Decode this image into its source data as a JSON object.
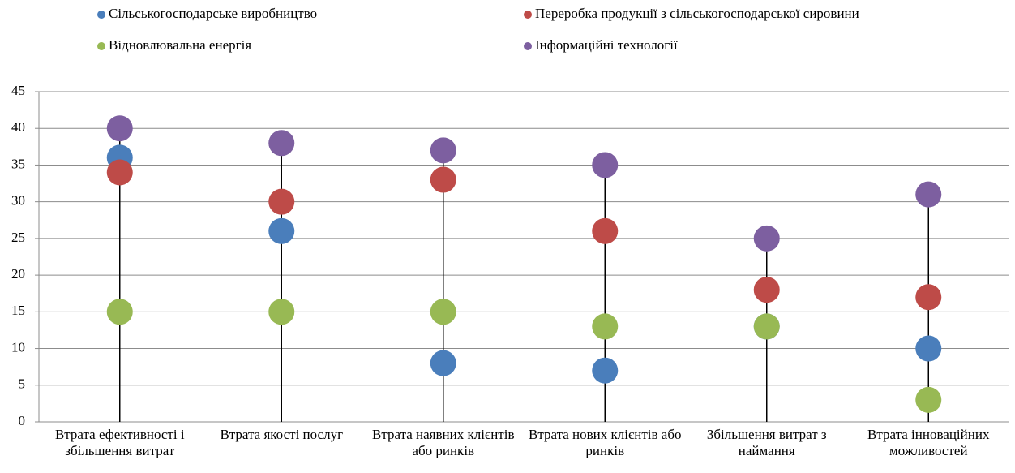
{
  "chart_data": {
    "type": "dot",
    "categories": [
      "Втрата ефективності і збільшення витрат",
      "Втрата якості послуг",
      "Втрата наявних клієнтів або ринків",
      "Втрата нових клієнтів або ринків",
      "Збільшення витрат з наймання",
      "Втрата інноваційних можливостей"
    ],
    "series": [
      {
        "name": "Сільськогосподарське виробництво",
        "color": "#4a7ebb",
        "values": [
          36,
          26,
          8,
          7,
          13,
          10
        ]
      },
      {
        "name": "Переробка продукції з сільськогосподарської сировини",
        "color": "#be4b48",
        "values": [
          34,
          30,
          33,
          26,
          18,
          17
        ]
      },
      {
        "name": "Відновлювальна енергія",
        "color": "#98b954",
        "values": [
          15,
          15,
          15,
          13,
          13,
          3
        ]
      },
      {
        "name": "Інформаційні технології",
        "color": "#7d5fa0",
        "values": [
          40,
          38,
          37,
          35,
          25,
          31
        ]
      }
    ],
    "ylim": [
      0,
      45
    ],
    "yticks": [
      0,
      5,
      10,
      15,
      20,
      25,
      30,
      35,
      40,
      45
    ],
    "grid": true,
    "legend": "top"
  }
}
